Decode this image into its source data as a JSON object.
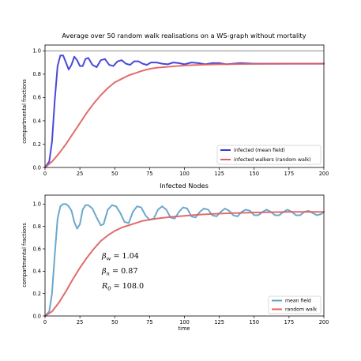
{
  "chart_data": [
    {
      "type": "line",
      "title": "Average over 50 random walk realisations on a WS-graph without mortality",
      "xlabel": "",
      "ylabel": "compartmental fractions",
      "xlim": [
        0,
        200
      ],
      "ylim": [
        0,
        1.05
      ],
      "xticks": [
        "0",
        "25",
        "50",
        "75",
        "100",
        "125",
        "150",
        "175",
        "200"
      ],
      "yticks": [
        "0.0",
        "0.2",
        "0.4",
        "0.6",
        "0.8",
        "1.0"
      ],
      "reference_line": {
        "y": 1.0,
        "color": "#666666"
      },
      "grid": false,
      "legend": "bottom-right",
      "series": [
        {
          "name": "infected (mean field)",
          "color": "#3a3ad6",
          "x": [
            0,
            3,
            5,
            7,
            9,
            11,
            13,
            15,
            17,
            19,
            21,
            23,
            25,
            27,
            29,
            31,
            34,
            37,
            40,
            43,
            46,
            49,
            52,
            55,
            58,
            61,
            64,
            67,
            70,
            73,
            76,
            80,
            84,
            88,
            92,
            96,
            100,
            105,
            110,
            115,
            120,
            125,
            130,
            140,
            150,
            160,
            170,
            180,
            190,
            200
          ],
          "values": [
            0.0,
            0.05,
            0.22,
            0.58,
            0.87,
            0.96,
            0.96,
            0.9,
            0.84,
            0.88,
            0.95,
            0.92,
            0.87,
            0.87,
            0.93,
            0.94,
            0.88,
            0.86,
            0.92,
            0.93,
            0.88,
            0.87,
            0.91,
            0.92,
            0.89,
            0.88,
            0.91,
            0.91,
            0.89,
            0.88,
            0.9,
            0.9,
            0.89,
            0.885,
            0.9,
            0.895,
            0.885,
            0.9,
            0.895,
            0.885,
            0.895,
            0.895,
            0.885,
            0.895,
            0.89,
            0.89,
            0.89,
            0.89,
            0.89,
            0.89
          ]
        },
        {
          "name": "infected walkers  (random walk)",
          "color": "#e06060",
          "x": [
            0,
            5,
            10,
            15,
            20,
            25,
            30,
            35,
            40,
            45,
            50,
            55,
            60,
            65,
            70,
            75,
            80,
            90,
            100,
            110,
            125,
            150,
            175,
            200
          ],
          "values": [
            0.0,
            0.05,
            0.12,
            0.2,
            0.29,
            0.38,
            0.47,
            0.55,
            0.62,
            0.68,
            0.73,
            0.76,
            0.79,
            0.81,
            0.83,
            0.845,
            0.855,
            0.865,
            0.875,
            0.88,
            0.885,
            0.888,
            0.89,
            0.89
          ]
        }
      ]
    },
    {
      "type": "line",
      "title": "Infected Nodes",
      "xlabel": "time",
      "ylabel": "compartmental fractions",
      "xlim": [
        0,
        200
      ],
      "ylim": [
        0,
        1.08
      ],
      "xticks": [
        "0",
        "25",
        "50",
        "75",
        "100",
        "125",
        "150",
        "175",
        "200"
      ],
      "yticks": [
        "0.0",
        "0.2",
        "0.4",
        "0.6",
        "0.8",
        "1.0"
      ],
      "grid": false,
      "legend": "bottom-right",
      "annotations": [
        {
          "base": "β",
          "sub": "w",
          "value": "= 1.04"
        },
        {
          "base": "β",
          "sub": "n",
          "value": "= 0.87"
        },
        {
          "base": "R",
          "sub": "0",
          "value": "= 108.0"
        }
      ],
      "series": [
        {
          "name": "mean field",
          "color": "#5ea1c9",
          "x": [
            0,
            3,
            5,
            7,
            9,
            11,
            13,
            15,
            17,
            19,
            21,
            23,
            25,
            27,
            29,
            31,
            34,
            37,
            40,
            42,
            45,
            48,
            51,
            54,
            57,
            60,
            63,
            66,
            69,
            72,
            75,
            78,
            81,
            84,
            87,
            90,
            93,
            96,
            99,
            102,
            105,
            108,
            111,
            114,
            117,
            120,
            123,
            126,
            129,
            132,
            135,
            138,
            141,
            144,
            147,
            150,
            153,
            156,
            159,
            162,
            165,
            168,
            171,
            174,
            177,
            180,
            183,
            186,
            189,
            192,
            195,
            198,
            200
          ],
          "values": [
            0.0,
            0.04,
            0.2,
            0.55,
            0.87,
            0.98,
            1.0,
            1.0,
            0.98,
            0.94,
            0.84,
            0.78,
            0.82,
            0.95,
            0.99,
            0.99,
            0.96,
            0.88,
            0.81,
            0.82,
            0.95,
            0.99,
            0.98,
            0.92,
            0.84,
            0.83,
            0.93,
            0.98,
            0.97,
            0.9,
            0.86,
            0.87,
            0.95,
            0.98,
            0.95,
            0.88,
            0.87,
            0.93,
            0.97,
            0.96,
            0.89,
            0.88,
            0.93,
            0.96,
            0.95,
            0.9,
            0.89,
            0.93,
            0.96,
            0.94,
            0.9,
            0.89,
            0.93,
            0.95,
            0.94,
            0.9,
            0.9,
            0.93,
            0.95,
            0.93,
            0.9,
            0.9,
            0.93,
            0.95,
            0.93,
            0.9,
            0.9,
            0.93,
            0.94,
            0.92,
            0.9,
            0.91,
            0.93
          ]
        },
        {
          "name": "random walk",
          "color": "#e06060",
          "x": [
            0,
            5,
            10,
            15,
            20,
            25,
            30,
            35,
            40,
            45,
            50,
            55,
            60,
            65,
            70,
            75,
            80,
            90,
            100,
            110,
            125,
            150,
            175,
            200
          ],
          "values": [
            0.0,
            0.04,
            0.12,
            0.22,
            0.33,
            0.43,
            0.52,
            0.6,
            0.67,
            0.72,
            0.76,
            0.79,
            0.81,
            0.83,
            0.85,
            0.86,
            0.87,
            0.885,
            0.895,
            0.905,
            0.915,
            0.925,
            0.93,
            0.93
          ]
        }
      ]
    }
  ]
}
